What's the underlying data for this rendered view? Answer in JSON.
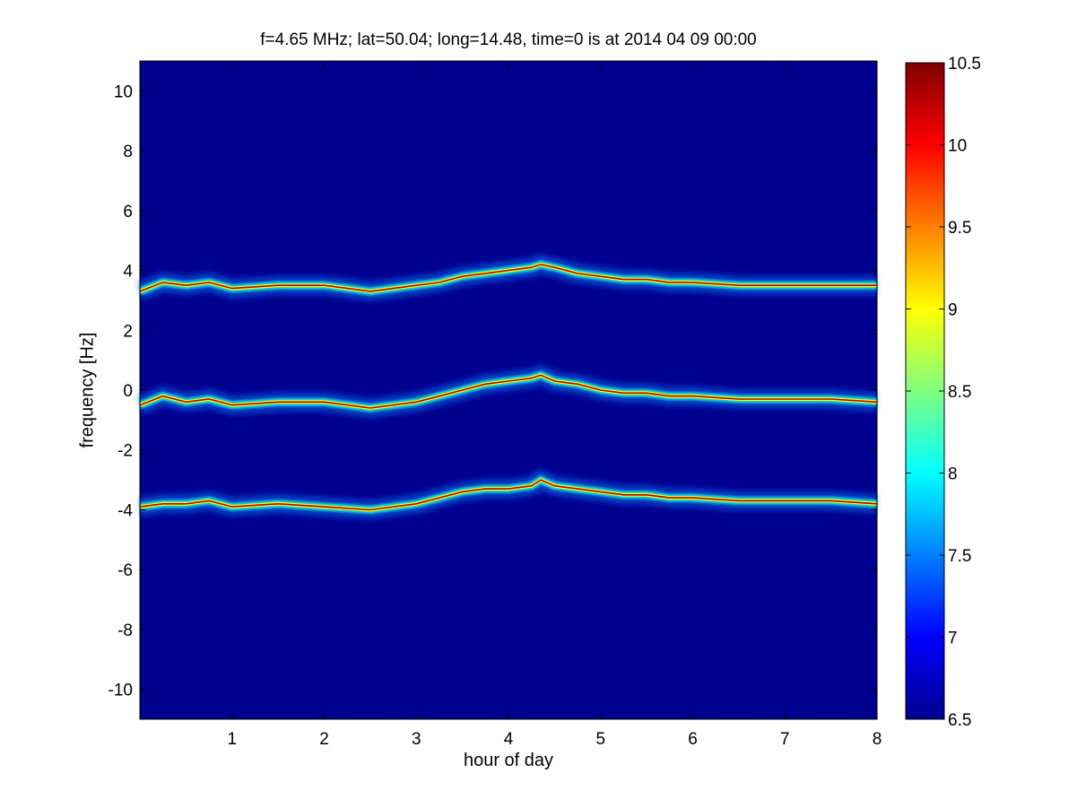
{
  "chart_data": {
    "type": "heatmap",
    "title": "f=4.65 MHz;  lat=50.04; long=14.48, time=0 is at 2014 04 09 00:00",
    "xlabel": "hour of day",
    "ylabel": "frequency [Hz]",
    "xlim": [
      0,
      8
    ],
    "ylim": [
      -11,
      11
    ],
    "xticks": [
      "1",
      "2",
      "3",
      "4",
      "5",
      "6",
      "7",
      "8"
    ],
    "yticks": [
      "-10",
      "-8",
      "-6",
      "-4",
      "-2",
      "0",
      "2",
      "4",
      "6",
      "8",
      "10"
    ],
    "background_value": 6.5,
    "colorbar": {
      "range": [
        6.5,
        10.5
      ],
      "ticks": [
        "6.5",
        "7",
        "7.5",
        "8",
        "8.5",
        "9",
        "9.5",
        "10",
        "10.5"
      ],
      "colormap": "jet"
    },
    "series": [
      {
        "x": [
          0.0,
          0.25,
          0.5,
          0.75,
          1.0,
          1.5,
          2.0,
          2.5,
          3.0,
          3.25,
          3.5,
          3.75,
          4.0,
          4.25,
          4.35,
          4.5,
          4.75,
          5.0,
          5.25,
          5.5,
          5.75,
          6.0,
          6.5,
          7.0,
          7.5,
          8.0
        ],
        "y": [
          3.3,
          3.6,
          3.5,
          3.6,
          3.4,
          3.5,
          3.5,
          3.3,
          3.5,
          3.6,
          3.8,
          3.9,
          4.0,
          4.1,
          4.2,
          4.1,
          3.9,
          3.8,
          3.7,
          3.7,
          3.6,
          3.6,
          3.5,
          3.5,
          3.5,
          3.5
        ],
        "peak_value": 10.3
      },
      {
        "x": [
          0.0,
          0.25,
          0.5,
          0.75,
          1.0,
          1.5,
          2.0,
          2.5,
          3.0,
          3.25,
          3.5,
          3.75,
          4.0,
          4.25,
          4.35,
          4.5,
          4.75,
          5.0,
          5.25,
          5.5,
          5.75,
          6.0,
          6.5,
          7.0,
          7.5,
          8.0
        ],
        "y": [
          -0.5,
          -0.2,
          -0.4,
          -0.3,
          -0.5,
          -0.4,
          -0.4,
          -0.6,
          -0.4,
          -0.2,
          0.0,
          0.2,
          0.3,
          0.4,
          0.5,
          0.3,
          0.2,
          0.0,
          -0.1,
          -0.1,
          -0.2,
          -0.2,
          -0.3,
          -0.3,
          -0.3,
          -0.4
        ],
        "peak_value": 10.3
      },
      {
        "x": [
          0.0,
          0.25,
          0.5,
          0.75,
          1.0,
          1.5,
          2.0,
          2.5,
          3.0,
          3.25,
          3.5,
          3.75,
          4.0,
          4.25,
          4.35,
          4.5,
          4.75,
          5.0,
          5.25,
          5.5,
          5.75,
          6.0,
          6.5,
          7.0,
          7.5,
          8.0
        ],
        "y": [
          -3.9,
          -3.8,
          -3.8,
          -3.7,
          -3.9,
          -3.8,
          -3.9,
          -4.0,
          -3.8,
          -3.6,
          -3.4,
          -3.3,
          -3.3,
          -3.2,
          -3.0,
          -3.2,
          -3.3,
          -3.4,
          -3.5,
          -3.5,
          -3.6,
          -3.6,
          -3.7,
          -3.7,
          -3.7,
          -3.8
        ],
        "peak_value": 10.3
      }
    ]
  }
}
